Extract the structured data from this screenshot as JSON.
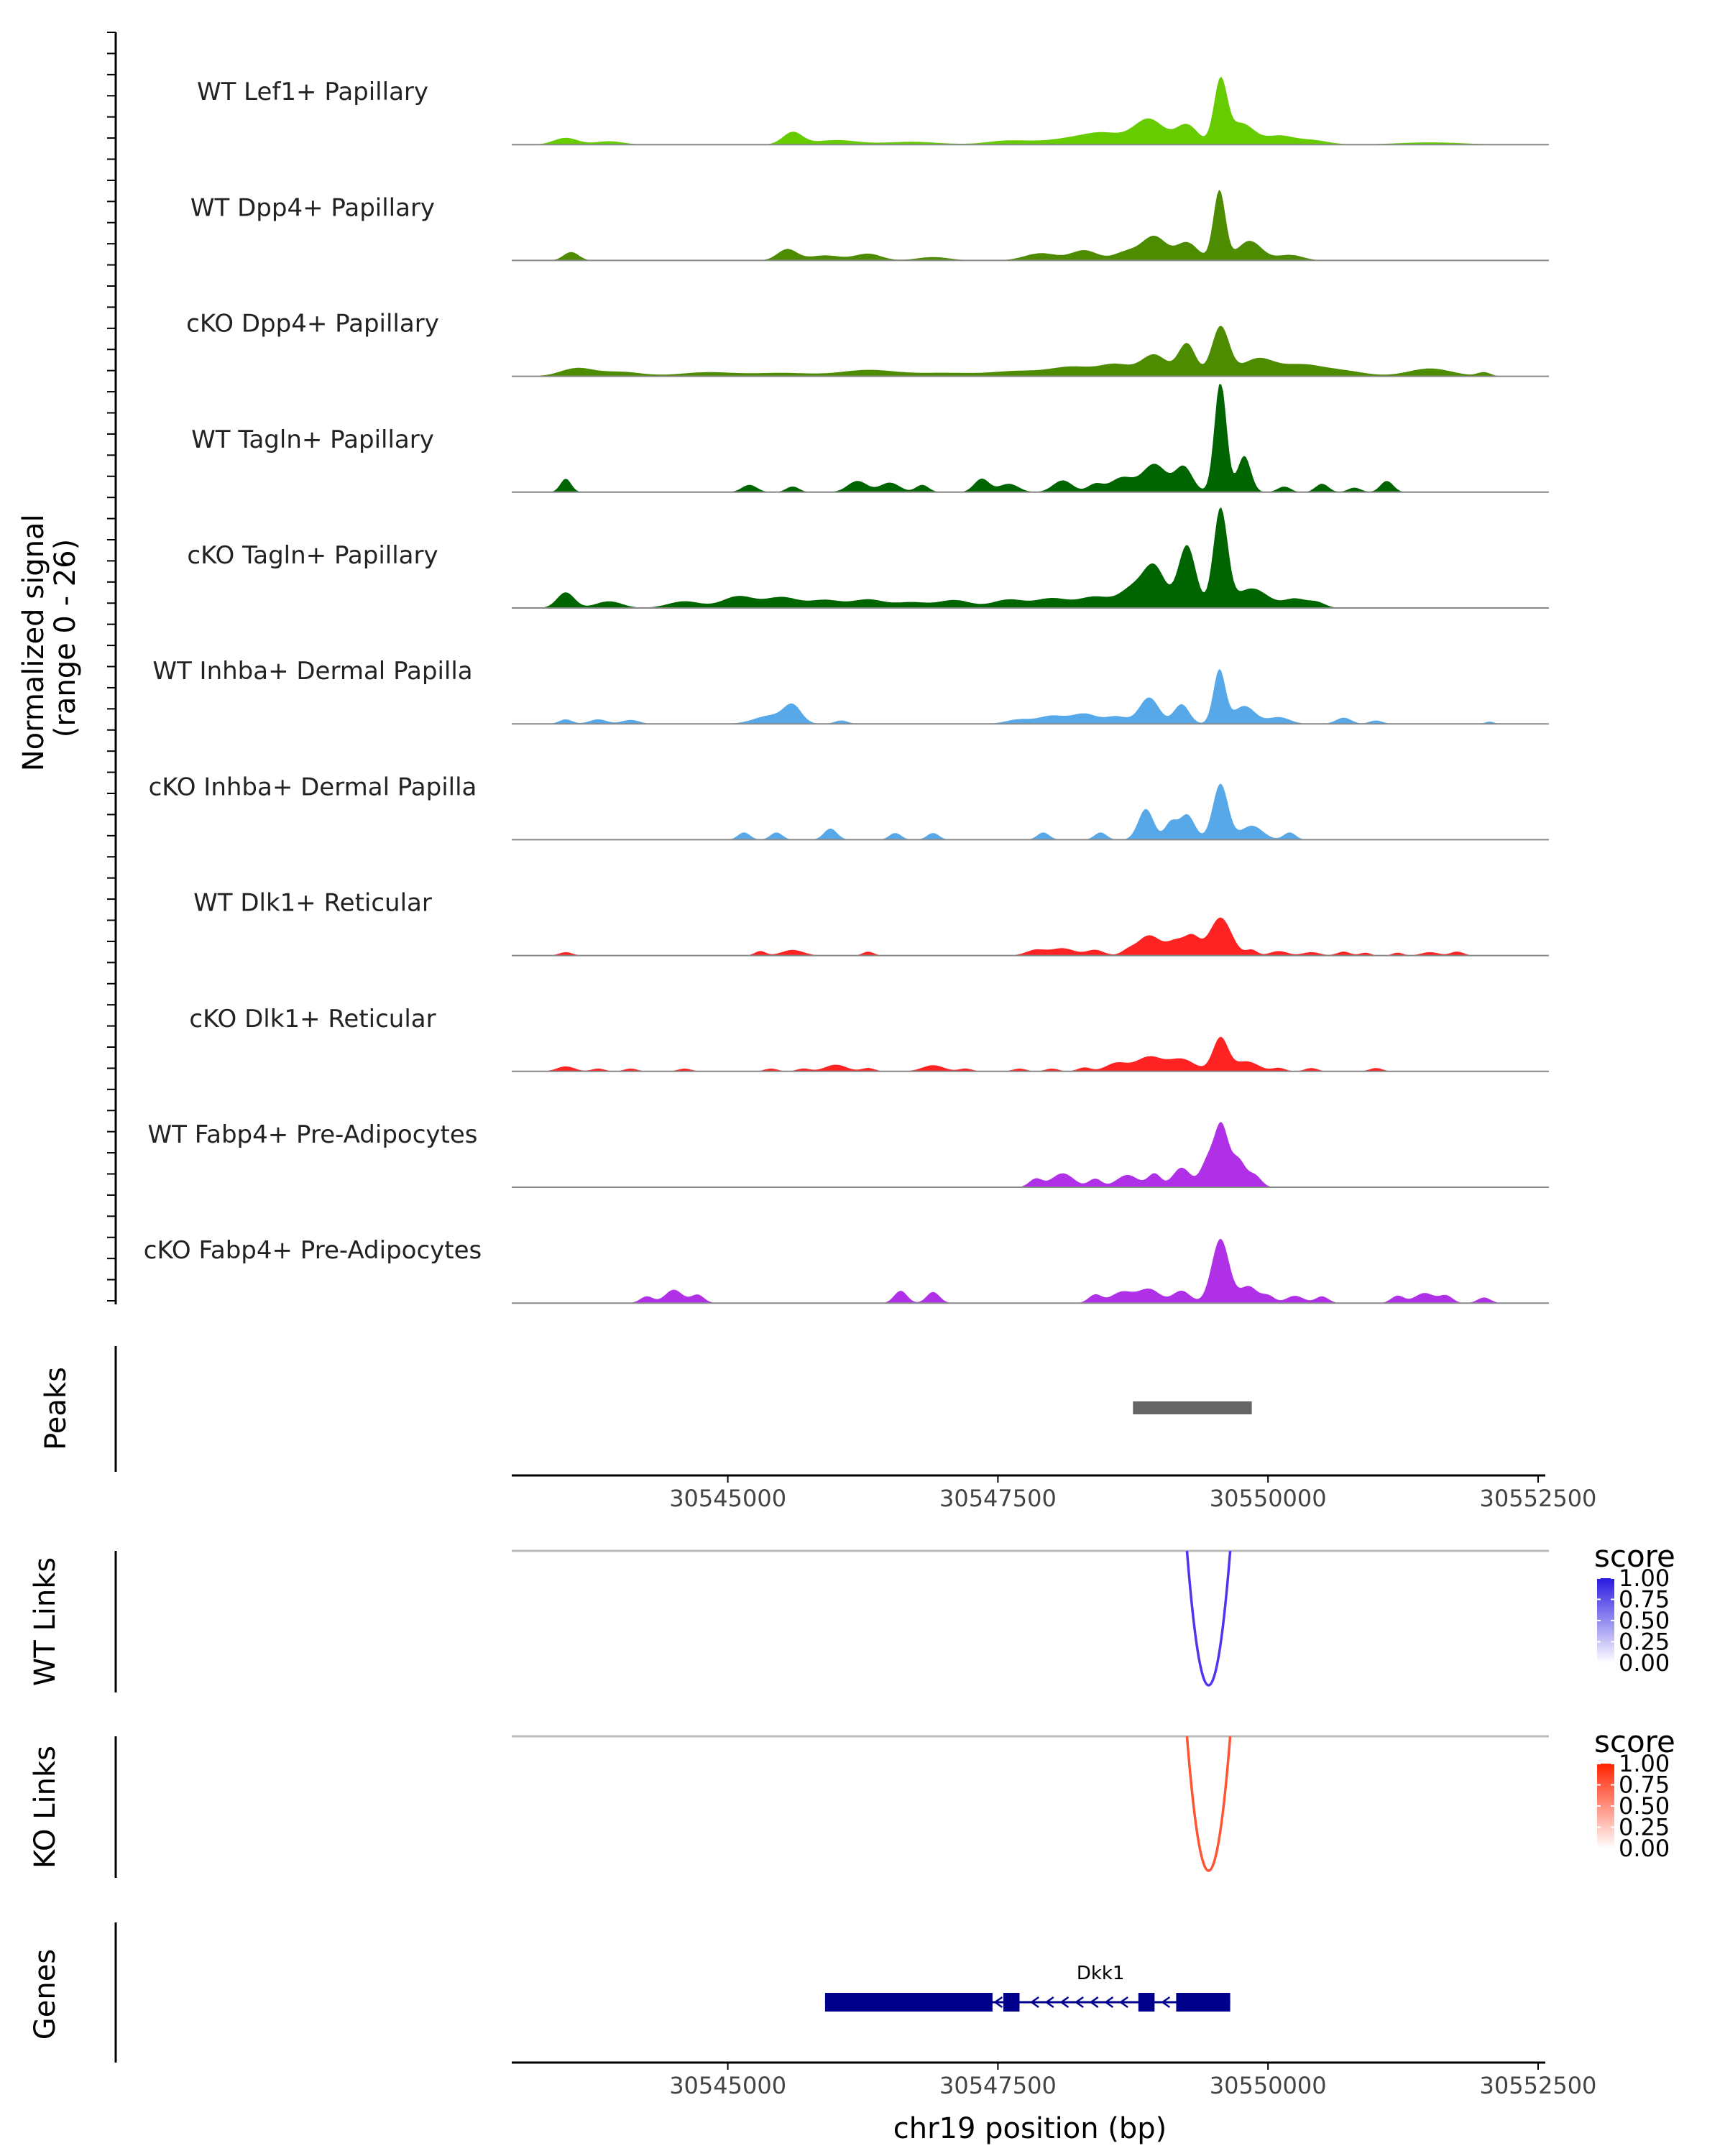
{
  "chart_data": {
    "type": "area",
    "region": "chr19",
    "xrange": [
      30543000,
      30552600
    ],
    "x_ticks": [
      30545000,
      30547500,
      30550000,
      30552500
    ],
    "x_tick_labels": [
      "30545000",
      "30547500",
      "30550000",
      "30552500"
    ],
    "xlabel": "chr19 position (bp)",
    "ylabel_line1": "Normalized signal",
    "ylabel_line2": "(range 0 - 26)",
    "ylim": [
      0,
      26
    ],
    "tracks": [
      {
        "name": "WT Lef1+ Papillary",
        "color": "#66cc00",
        "peaks": [
          [
            30543500,
            1.2,
            110
          ],
          [
            30543900,
            0.6,
            130
          ],
          [
            30545600,
            2.2,
            90
          ],
          [
            30546000,
            0.8,
            200
          ],
          [
            30546700,
            0.5,
            250
          ],
          [
            30547600,
            0.7,
            200
          ],
          [
            30548200,
            1.1,
            250
          ],
          [
            30548500,
            1.6,
            180
          ],
          [
            30548900,
            4.5,
            140
          ],
          [
            30549250,
            3.5,
            100
          ],
          [
            30549560,
            11,
            60
          ],
          [
            30549750,
            3.8,
            120
          ],
          [
            30550100,
            1.5,
            130
          ],
          [
            30550400,
            0.8,
            150
          ],
          [
            30551500,
            0.4,
            300
          ]
        ]
      },
      {
        "name": "WT Dpp4+ Papillary",
        "color": "#4d8c00",
        "peaks": [
          [
            30543550,
            1.5,
            70
          ],
          [
            30545550,
            2.0,
            90
          ],
          [
            30545900,
            0.9,
            150
          ],
          [
            30546300,
            1.2,
            120
          ],
          [
            30546900,
            0.6,
            150
          ],
          [
            30547900,
            1.3,
            150
          ],
          [
            30548300,
            1.8,
            120
          ],
          [
            30548700,
            1.6,
            120
          ],
          [
            30548950,
            4.2,
            110
          ],
          [
            30549250,
            3.2,
            100
          ],
          [
            30549550,
            12.5,
            55
          ],
          [
            30549830,
            3.5,
            110
          ],
          [
            30550200,
            1.0,
            120
          ]
        ]
      },
      {
        "name": "cKO Dpp4+ Papillary",
        "color": "#4d8c00",
        "peaks": [
          [
            30543600,
            1.4,
            150
          ],
          [
            30544000,
            0.8,
            200
          ],
          [
            30544800,
            0.7,
            250
          ],
          [
            30545500,
            0.6,
            300
          ],
          [
            30546300,
            1.1,
            250
          ],
          [
            30547000,
            0.6,
            300
          ],
          [
            30547700,
            0.9,
            250
          ],
          [
            30548200,
            1.6,
            200
          ],
          [
            30548600,
            2.0,
            150
          ],
          [
            30548950,
            3.8,
            120
          ],
          [
            30549250,
            5.8,
            80
          ],
          [
            30549560,
            8.8,
            80
          ],
          [
            30549900,
            3.0,
            150
          ],
          [
            30550300,
            2.0,
            200
          ],
          [
            30550700,
            0.9,
            200
          ],
          [
            30551500,
            1.4,
            200
          ],
          [
            30552000,
            0.7,
            60
          ]
        ]
      },
      {
        "name": "WT Tagln+ Papillary",
        "color": "#006400",
        "peaks": [
          [
            30543500,
            2.4,
            50
          ],
          [
            30545200,
            1.3,
            70
          ],
          [
            30545600,
            1.0,
            60
          ],
          [
            30546200,
            2.0,
            90
          ],
          [
            30546500,
            1.7,
            90
          ],
          [
            30546800,
            1.3,
            60
          ],
          [
            30547350,
            2.4,
            70
          ],
          [
            30547600,
            1.5,
            90
          ],
          [
            30548100,
            2.1,
            90
          ],
          [
            30548400,
            1.4,
            70
          ],
          [
            30548650,
            2.6,
            110
          ],
          [
            30548950,
            5.0,
            110
          ],
          [
            30549220,
            4.5,
            80
          ],
          [
            30549560,
            20,
            55
          ],
          [
            30549780,
            6.5,
            60
          ],
          [
            30550150,
            1.0,
            60
          ],
          [
            30550500,
            1.5,
            60
          ],
          [
            30550800,
            0.8,
            60
          ],
          [
            30551100,
            2.0,
            60
          ]
        ]
      },
      {
        "name": "cKO Tagln+ Papillary",
        "color": "#006400",
        "peaks": [
          [
            30543500,
            2.8,
            80
          ],
          [
            30543900,
            1.2,
            120
          ],
          [
            30544600,
            1.2,
            150
          ],
          [
            30545100,
            2.1,
            150
          ],
          [
            30545500,
            1.9,
            150
          ],
          [
            30545900,
            1.4,
            150
          ],
          [
            30546300,
            1.5,
            150
          ],
          [
            30546700,
            1.0,
            150
          ],
          [
            30547100,
            1.4,
            150
          ],
          [
            30547600,
            1.5,
            150
          ],
          [
            30548000,
            1.7,
            150
          ],
          [
            30548400,
            2.0,
            150
          ],
          [
            30548750,
            3.4,
            120
          ],
          [
            30548950,
            7.0,
            100
          ],
          [
            30549250,
            11.2,
            80
          ],
          [
            30549560,
            17.5,
            65
          ],
          [
            30549850,
            3.5,
            150
          ],
          [
            30550250,
            1.6,
            100
          ],
          [
            30550450,
            1.0,
            80
          ]
        ]
      },
      {
        "name": "WT Inhba+ Dermal Papilla",
        "color": "#56a8e8",
        "peaks": [
          [
            30543500,
            0.8,
            60
          ],
          [
            30543800,
            0.8,
            80
          ],
          [
            30544100,
            0.7,
            80
          ],
          [
            30545400,
            1.5,
            150
          ],
          [
            30545600,
            3.0,
            80
          ],
          [
            30546050,
            0.6,
            60
          ],
          [
            30547700,
            0.8,
            120
          ],
          [
            30548000,
            1.4,
            120
          ],
          [
            30548300,
            1.8,
            120
          ],
          [
            30548600,
            1.3,
            100
          ],
          [
            30548900,
            4.7,
            90
          ],
          [
            30549200,
            3.5,
            70
          ],
          [
            30549550,
            9.6,
            55
          ],
          [
            30549780,
            3.2,
            100
          ],
          [
            30550100,
            1.2,
            100
          ],
          [
            30550700,
            1.1,
            70
          ],
          [
            30551000,
            0.6,
            60
          ],
          [
            30552050,
            0.4,
            40
          ]
        ]
      },
      {
        "name": "cKO Inhba+ Dermal Papilla",
        "color": "#56a8e8",
        "peaks": [
          [
            30545150,
            1.3,
            55
          ],
          [
            30545450,
            1.3,
            55
          ],
          [
            30545950,
            2.0,
            60
          ],
          [
            30546550,
            1.2,
            55
          ],
          [
            30546900,
            1.2,
            55
          ],
          [
            30547920,
            1.3,
            55
          ],
          [
            30548450,
            1.3,
            55
          ],
          [
            30548870,
            5.5,
            70
          ],
          [
            30549100,
            3.0,
            55
          ],
          [
            30549250,
            4.5,
            70
          ],
          [
            30549560,
            10,
            70
          ],
          [
            30549850,
            2.5,
            100
          ],
          [
            30550200,
            1.3,
            55
          ]
        ]
      },
      {
        "name": "WT Dlk1+ Reticular",
        "color": "#ff2222",
        "peaks": [
          [
            30543500,
            0.6,
            60
          ],
          [
            30545300,
            0.8,
            50
          ],
          [
            30545600,
            1.0,
            100
          ],
          [
            30546300,
            0.7,
            50
          ],
          [
            30547850,
            1.0,
            90
          ],
          [
            30548100,
            1.3,
            110
          ],
          [
            30548400,
            1.0,
            80
          ],
          [
            30548700,
            0.7,
            60
          ],
          [
            30548900,
            3.6,
            110
          ],
          [
            30549150,
            2.4,
            80
          ],
          [
            30549300,
            3.2,
            70
          ],
          [
            30549560,
            6.8,
            100
          ],
          [
            30549850,
            1.0,
            50
          ],
          [
            30550100,
            0.8,
            80
          ],
          [
            30550400,
            0.6,
            80
          ],
          [
            30550700,
            0.7,
            60
          ],
          [
            30550900,
            0.5,
            50
          ],
          [
            30551200,
            0.5,
            50
          ],
          [
            30551500,
            0.6,
            80
          ],
          [
            30551750,
            0.7,
            60
          ]
        ]
      },
      {
        "name": "cKO Dlk1+ Reticular",
        "color": "#ff2222",
        "peaks": [
          [
            30543500,
            0.9,
            80
          ],
          [
            30543800,
            0.5,
            60
          ],
          [
            30544100,
            0.5,
            60
          ],
          [
            30544600,
            0.5,
            60
          ],
          [
            30545400,
            0.5,
            60
          ],
          [
            30545700,
            0.5,
            60
          ],
          [
            30546000,
            1.2,
            100
          ],
          [
            30546300,
            0.6,
            60
          ],
          [
            30546900,
            1.1,
            100
          ],
          [
            30547200,
            0.5,
            60
          ],
          [
            30547700,
            0.5,
            60
          ],
          [
            30548000,
            0.5,
            60
          ],
          [
            30548300,
            0.7,
            60
          ],
          [
            30548600,
            1.5,
            100
          ],
          [
            30548900,
            2.6,
            120
          ],
          [
            30549200,
            2.2,
            120
          ],
          [
            30549560,
            6.0,
            70
          ],
          [
            30549800,
            1.8,
            110
          ],
          [
            30550100,
            0.6,
            60
          ],
          [
            30550400,
            0.6,
            60
          ],
          [
            30551000,
            0.6,
            60
          ]
        ]
      },
      {
        "name": "WT Fabp4+ Pre-Adipocytes",
        "color": "#b030e8",
        "peaks": [
          [
            30547850,
            1.5,
            60
          ],
          [
            30548100,
            2.5,
            100
          ],
          [
            30548400,
            1.5,
            60
          ],
          [
            30548700,
            2.2,
            100
          ],
          [
            30548950,
            2.4,
            60
          ],
          [
            30549200,
            3.5,
            80
          ],
          [
            30549450,
            5.0,
            70
          ],
          [
            30549570,
            10,
            60
          ],
          [
            30549720,
            5.0,
            70
          ],
          [
            30549880,
            2.0,
            60
          ]
        ]
      },
      {
        "name": "cKO Fabp4+ Pre-Adipocytes",
        "color": "#b030e8",
        "peaks": [
          [
            30544250,
            1.2,
            60
          ],
          [
            30544500,
            2.4,
            80
          ],
          [
            30544720,
            1.5,
            60
          ],
          [
            30546600,
            2.2,
            60
          ],
          [
            30546900,
            2.0,
            60
          ],
          [
            30548400,
            1.5,
            60
          ],
          [
            30548650,
            2.0,
            100
          ],
          [
            30548900,
            2.5,
            100
          ],
          [
            30549200,
            2.2,
            80
          ],
          [
            30549560,
            11.5,
            80
          ],
          [
            30549820,
            3.0,
            80
          ],
          [
            30550000,
            1.3,
            60
          ],
          [
            30550250,
            1.3,
            80
          ],
          [
            30550500,
            1.2,
            60
          ],
          [
            30551200,
            1.3,
            60
          ],
          [
            30551450,
            1.8,
            90
          ],
          [
            30551650,
            1.3,
            60
          ],
          [
            30552000,
            1.0,
            60
          ]
        ]
      }
    ],
    "peaks_track": {
      "label": "Peaks",
      "color": "#666666",
      "regions": [
        [
          30548750,
          30549850
        ]
      ]
    },
    "links": [
      {
        "label": "WT Links",
        "color": "#5533ee",
        "legend_title": "score",
        "legend_low": "#ffffff",
        "legend_high": "#2a1ae0",
        "legend_ticks": [
          "1.00",
          "0.75",
          "0.50",
          "0.25",
          "0.00"
        ],
        "start": 30549250,
        "end": 30549650
      },
      {
        "label": "KO Links",
        "color": "#ff5533",
        "legend_title": "score",
        "legend_low": "#ffffff",
        "legend_high": "#ff2200",
        "legend_ticks": [
          "1.00",
          "0.75",
          "0.50",
          "0.25",
          "0.00"
        ],
        "start": 30549250,
        "end": 30549650
      }
    ],
    "genes": {
      "label": "Genes",
      "color": "#00008b",
      "gene_name": "Dkk1",
      "strand": "-",
      "span": [
        30545900,
        30549650
      ],
      "exons": [
        [
          30545900,
          30547450
        ],
        [
          30547550,
          30547700
        ],
        [
          30548800,
          30548950
        ],
        [
          30549150,
          30549650
        ]
      ]
    }
  }
}
